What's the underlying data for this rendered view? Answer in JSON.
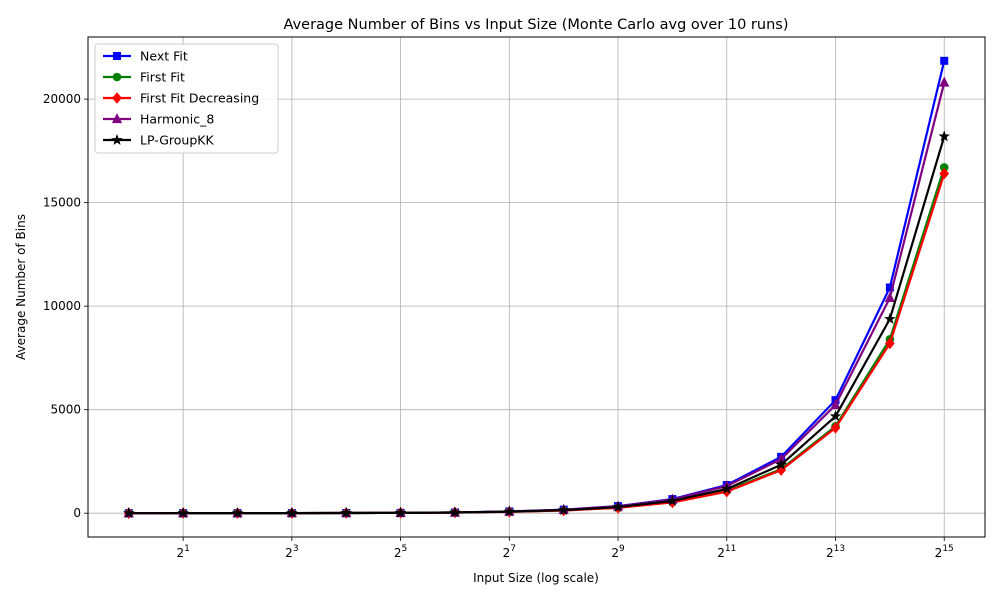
{
  "chart_data": {
    "type": "line",
    "title": "Average Number of Bins vs Input Size (Monte Carlo avg over 10 runs)",
    "xlabel": "Input Size (log scale)",
    "ylabel": "Average Number of Bins",
    "x_scale": "log2",
    "x": [
      1,
      2,
      4,
      8,
      16,
      32,
      64,
      128,
      256,
      512,
      1024,
      2048,
      4096,
      8192,
      16384,
      32768
    ],
    "x_ticks": [
      {
        "value": 2,
        "base": "2",
        "exp": "1"
      },
      {
        "value": 8,
        "base": "2",
        "exp": "3"
      },
      {
        "value": 32,
        "base": "2",
        "exp": "5"
      },
      {
        "value": 128,
        "base": "2",
        "exp": "7"
      },
      {
        "value": 512,
        "base": "2",
        "exp": "9"
      },
      {
        "value": 2048,
        "base": "2",
        "exp": "11"
      },
      {
        "value": 8192,
        "base": "2",
        "exp": "13"
      },
      {
        "value": 32768,
        "base": "2",
        "exp": "15"
      }
    ],
    "y_ticks": [
      {
        "value": 0,
        "label": "0"
      },
      {
        "value": 5000,
        "label": "5000"
      },
      {
        "value": 10000,
        "label": "10000"
      },
      {
        "value": 15000,
        "label": "15000"
      },
      {
        "value": 20000,
        "label": "20000"
      }
    ],
    "ylim": [
      -1150,
      23000
    ],
    "xlim_log2": [
      -0.75,
      15.75
    ],
    "grid": true,
    "legend_position": "top-left",
    "series": [
      {
        "name": "Next Fit",
        "color": "#0000ff",
        "marker": "square",
        "values": [
          1,
          2,
          3,
          5,
          9,
          18,
          35,
          85,
          170,
          340,
          680,
          1360,
          2720,
          5460,
          10900,
          21850
        ]
      },
      {
        "name": "First Fit",
        "color": "#008000",
        "marker": "circle",
        "values": [
          1,
          2,
          3,
          5,
          8,
          16,
          32,
          70,
          135,
          270,
          540,
          1080,
          2130,
          4200,
          8400,
          16700
        ]
      },
      {
        "name": "First Fit Decreasing",
        "color": "#ff0000",
        "marker": "diamond",
        "values": [
          1,
          2,
          3,
          5,
          8,
          16,
          32,
          68,
          130,
          260,
          520,
          1040,
          2080,
          4120,
          8200,
          16400
        ]
      },
      {
        "name": "Harmonic_8",
        "color": "#800080",
        "marker": "triangle",
        "values": [
          1,
          2,
          3,
          5,
          9,
          17,
          34,
          82,
          165,
          330,
          660,
          1310,
          2610,
          5230,
          10400,
          20800
        ]
      },
      {
        "name": "LP-GroupKK",
        "color": "#000000",
        "marker": "star",
        "values": [
          1,
          2,
          3,
          5,
          9,
          17,
          34,
          76,
          148,
          296,
          590,
          1170,
          2340,
          4680,
          9380,
          18200
        ]
      }
    ]
  }
}
